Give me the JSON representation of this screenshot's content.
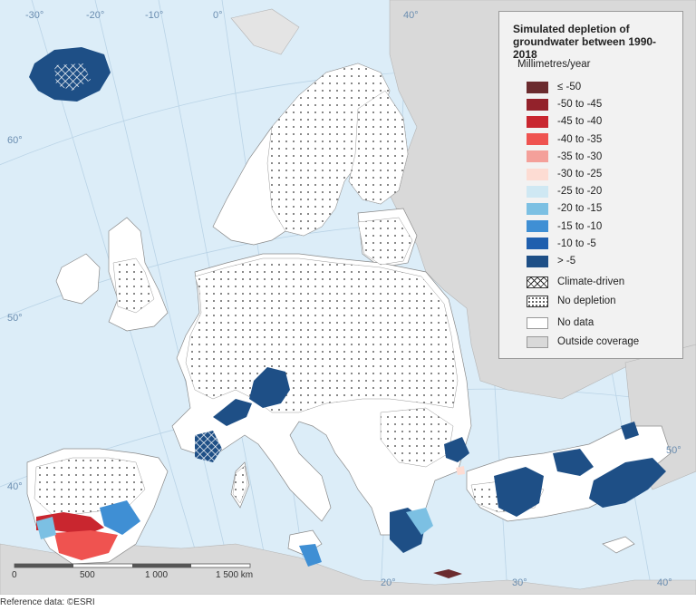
{
  "legend": {
    "title": "Simulated depletion of groundwater between 1990-2018",
    "unit": "Millimetres/year",
    "classes": [
      {
        "label": "≤ -50",
        "color": "#6b2b2e"
      },
      {
        "label": "-50 to -45",
        "color": "#93222b"
      },
      {
        "label": "-45 to -40",
        "color": "#c9262f"
      },
      {
        "label": "-40 to -35",
        "color": "#ef5350"
      },
      {
        "label": "-35 to -30",
        "color": "#f4a09a"
      },
      {
        "label": "-30 to -25",
        "color": "#fddcd3"
      },
      {
        "label": "-25 to -20",
        "color": "#cfe8f3"
      },
      {
        "label": "-20 to -15",
        "color": "#7cc0e3"
      },
      {
        "label": "-15 to -10",
        "color": "#3f8fd4"
      },
      {
        "label": "-10 to -5",
        "color": "#1f5fae"
      },
      {
        "label": "> -5",
        "color": "#1e4f86"
      }
    ],
    "pattern_items": [
      {
        "label": "Climate-driven"
      },
      {
        "label": "No depletion"
      }
    ],
    "plain_items": [
      {
        "label": "No data",
        "color": "#ffffff"
      },
      {
        "label": "Outside coverage",
        "color": "#d9d9d9"
      }
    ]
  },
  "graticule": {
    "top_labels": [
      "-30°",
      "-20°",
      "-10°",
      "0°",
      "40°"
    ],
    "left_labels": [
      "60°",
      "50°",
      "40°"
    ],
    "bottom_labels": [
      "20°",
      "30°",
      "40°"
    ],
    "east_label": "50°"
  },
  "scale_bar": {
    "labels": [
      "0",
      "500",
      "1 000",
      "1 500 km"
    ]
  },
  "credit": "Reference data: ©ESRI",
  "colors": {
    "sea": "#dcedf8",
    "land_outside": "#d9d9d9",
    "land_study": "#ffffff",
    "graticule": "#b9d3e6",
    "border": "#9a9a9a"
  }
}
